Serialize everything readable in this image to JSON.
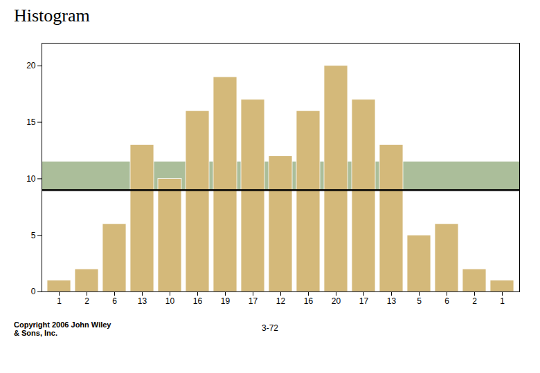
{
  "chart_data": {
    "type": "bar",
    "title": "Histogram",
    "categories": [
      "1",
      "2",
      "6",
      "13",
      "10",
      "16",
      "19",
      "17",
      "12",
      "16",
      "20",
      "17",
      "13",
      "5",
      "6",
      "2",
      "1"
    ],
    "values": [
      1,
      2,
      6,
      13,
      10,
      16,
      19,
      17,
      12,
      16,
      20,
      17,
      13,
      5,
      6,
      2,
      1
    ],
    "color": "#D4B97A",
    "ylim": [
      0,
      22
    ],
    "yticks": [
      0,
      5,
      10,
      15,
      20
    ],
    "grid": false,
    "band": {
      "range": [
        9.0,
        11.5
      ],
      "color": "#8FA878"
    },
    "hline": {
      "value": 9.0,
      "color": "#000000"
    },
    "annotations": [
      "Copyright 2006 John Wiley\n& Sons, Inc.",
      "3-72"
    ]
  }
}
